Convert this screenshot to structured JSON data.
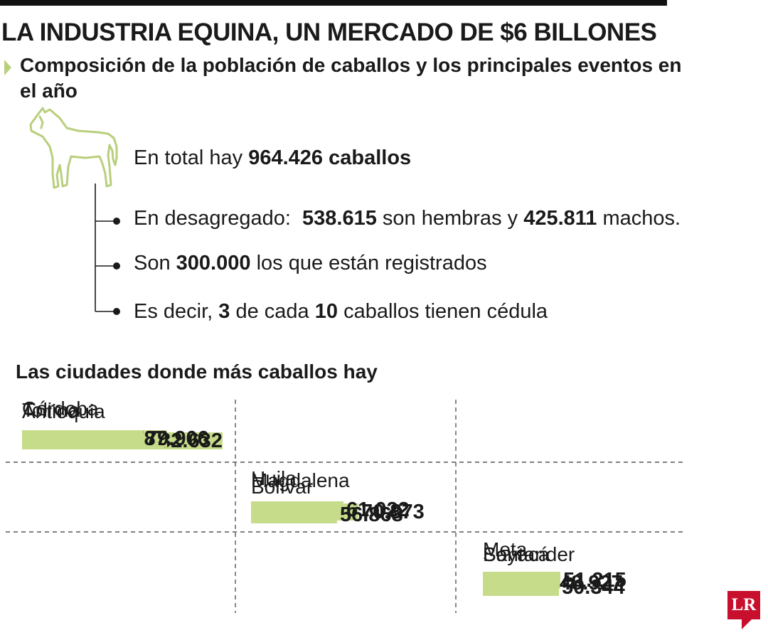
{
  "header": {
    "title": "LA INDUSTRIA EQUINA, UN MERCADO DE $6 BILLONES",
    "subtitle": "Composición de la población de caballos y los principales eventos en el año"
  },
  "stats": {
    "total": {
      "prefix": "En total hay",
      "value": "964.426",
      "unit": "caballos"
    },
    "breakdown": {
      "prefix": "En desagregado:",
      "females": "538.615",
      "mid": "son hembras y",
      "males": "425.811",
      "suffix": "machos."
    },
    "registered": {
      "prefix": "Son",
      "value": "300.000",
      "suffix": "los que están registrados"
    },
    "ratio": {
      "prefix": "Es decir,",
      "a": "3",
      "mid": "de cada",
      "b": "10",
      "suffix": "caballos tienen cédula"
    }
  },
  "chart_data": {
    "type": "bar",
    "title": "Las ciudades donde más caballos hay",
    "categories": [
      "Antioquia",
      "Tolima",
      "Córdoba",
      "Huila",
      "Magdalena",
      "Bolívar",
      "Meta",
      "Santander",
      "Boyacá"
    ],
    "values": [
      132632,
      95787,
      79906,
      70873,
      61022,
      56868,
      51215,
      50344,
      48927
    ],
    "labels": [
      "132.632",
      "95.787",
      "79.906",
      "70.873",
      "61.022",
      "56.868",
      "51.215",
      "50.344",
      "48.927"
    ],
    "bar_color": "#c6dc8a"
  },
  "colors": {
    "accent": "#b8cf7c",
    "bar": "#c6dc8a",
    "logo": "#c8102e"
  },
  "logo": {
    "text": "LR"
  }
}
